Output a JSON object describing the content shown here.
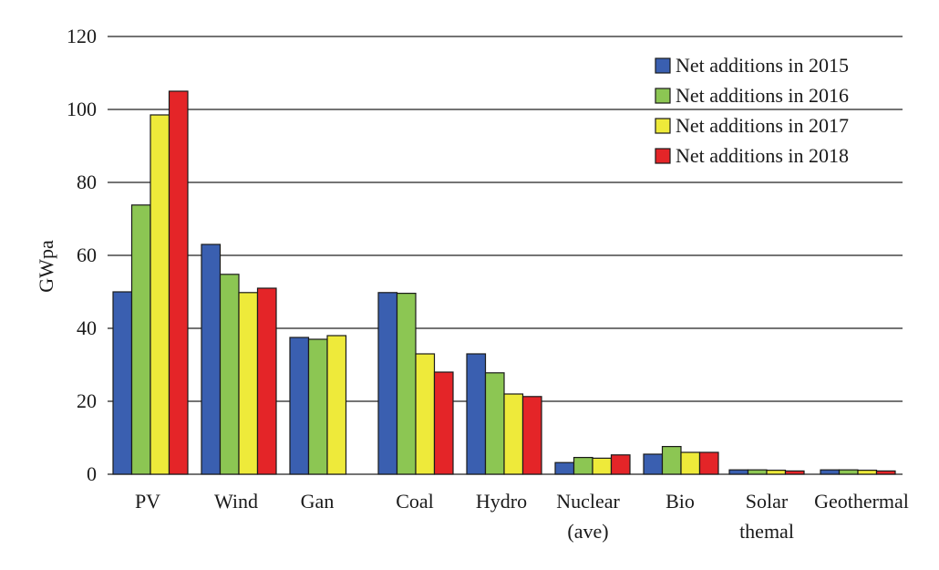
{
  "chart_data": {
    "type": "bar",
    "title": "",
    "xlabel": "",
    "ylabel": "GWpa",
    "ylim": [
      0,
      120
    ],
    "yticks": [
      0,
      20,
      40,
      60,
      80,
      100,
      120
    ],
    "grid": true,
    "legend_position": "top-right",
    "categories": [
      [
        "PV"
      ],
      [
        "Wind"
      ],
      [
        "Gan"
      ],
      [
        "Coal"
      ],
      [
        "Hydro"
      ],
      [
        "Nuclear",
        "(ave)"
      ],
      [
        "Bio"
      ],
      [
        "Solar",
        "themal"
      ],
      [
        "Geothermal"
      ]
    ],
    "series": [
      {
        "name": "Net additions in 2015",
        "color": "#3a5fb0",
        "values": [
          50,
          63,
          37.5,
          49.8,
          33,
          3.2,
          5.5,
          1.2,
          1.2
        ]
      },
      {
        "name": "Net additions in 2016",
        "color": "#8cc653",
        "values": [
          73.8,
          54.8,
          37,
          49.6,
          27.8,
          4.6,
          7.6,
          1.2,
          1.2
        ]
      },
      {
        "name": "Net additions in 2017",
        "color": "#eeea3a",
        "values": [
          98.5,
          49.8,
          38,
          33,
          22,
          4.4,
          6,
          1.1,
          1.1
        ]
      },
      {
        "name": "Net additions in 2018",
        "color": "#e42528",
        "values": [
          105,
          51,
          null,
          28,
          21.3,
          5.3,
          6,
          0.9,
          0.9
        ]
      }
    ]
  }
}
